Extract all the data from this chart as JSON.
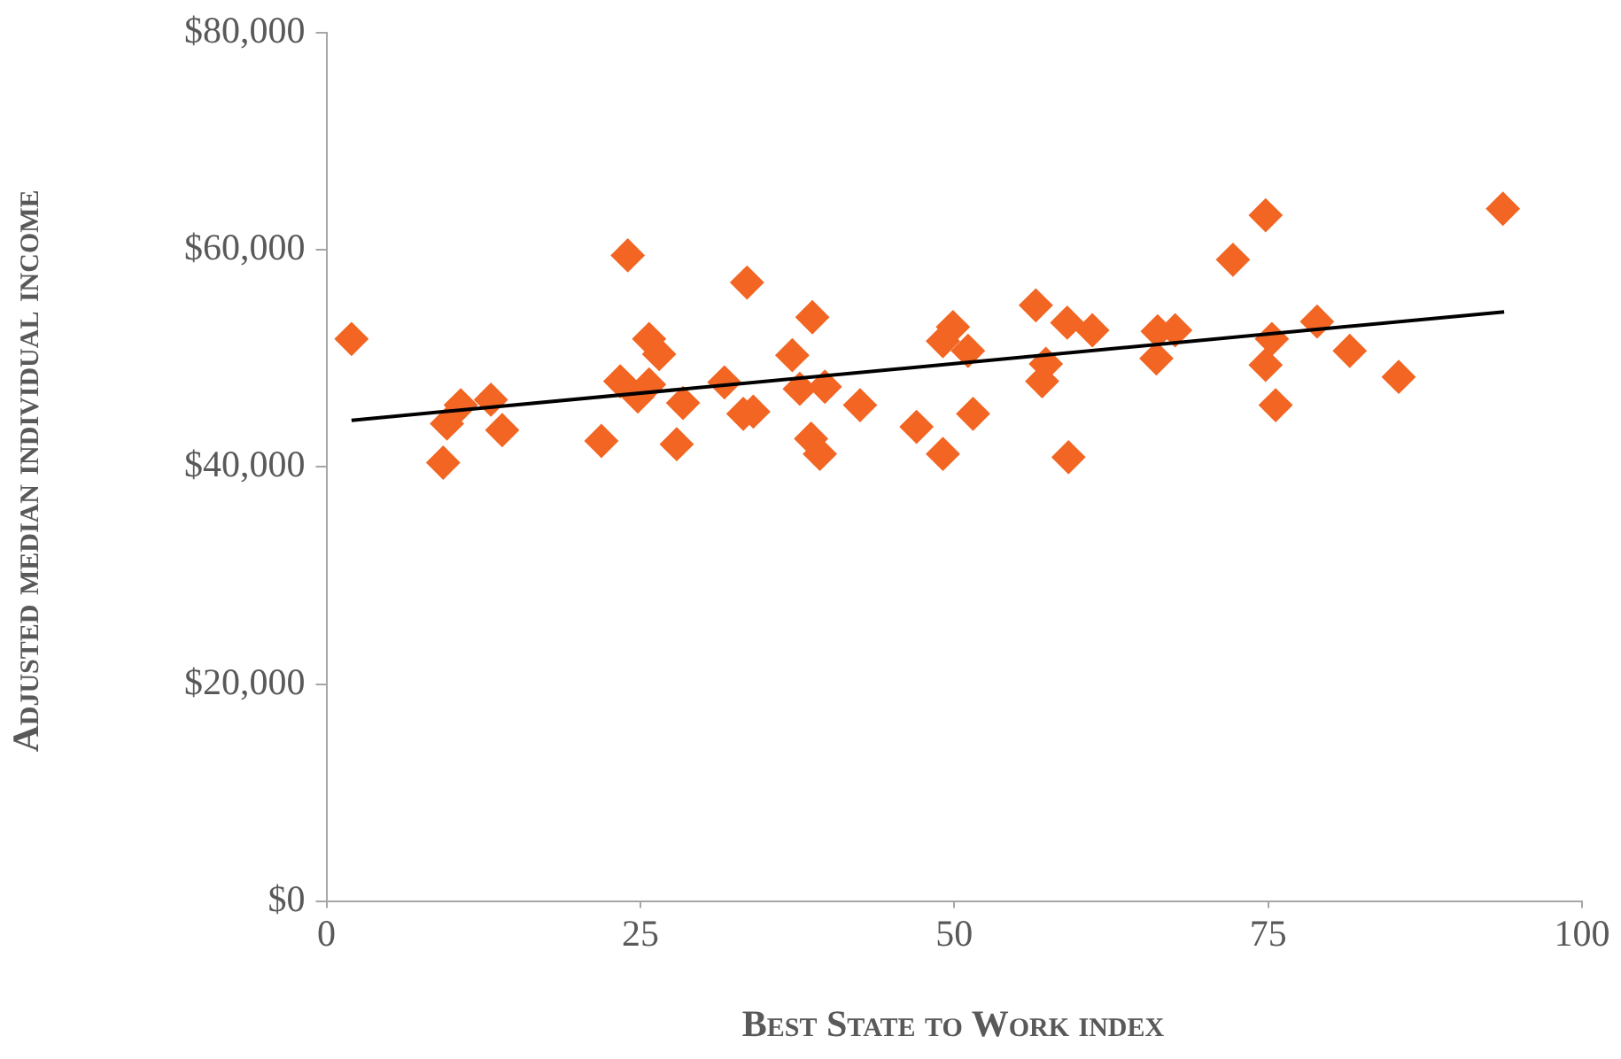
{
  "chart_data": {
    "type": "scatter",
    "xlabel": "Best State to Work index",
    "ylabel": "Adjusted median individual income",
    "xlim": [
      0,
      100
    ],
    "xticks": [
      0,
      25,
      50,
      75,
      100
    ],
    "ylim": [
      0,
      80000
    ],
    "yticks": [
      {
        "value": 0,
        "label": "$0"
      },
      {
        "value": 20000,
        "label": "$20,000"
      },
      {
        "value": 40000,
        "label": "$40,000"
      },
      {
        "value": 60000,
        "label": "$60,000"
      },
      {
        "value": 80000,
        "label": "$80,000"
      }
    ],
    "series": [
      {
        "type": "scatter",
        "marker": "diamond",
        "color": "#f26522",
        "x": [
          2.0,
          9.3,
          9.6,
          10.7,
          13.1,
          14.0,
          21.9,
          24.0,
          23.4,
          24.8,
          25.7,
          25.7,
          26.5,
          28.4,
          27.9,
          31.7,
          33.5,
          33.2,
          34.0,
          37.1,
          37.7,
          38.7,
          39.7,
          38.6,
          39.3,
          42.5,
          47.0,
          49.1,
          49.1,
          49.9,
          51.1,
          51.5,
          56.5,
          59.0,
          61.0,
          57.3,
          57.0,
          59.1,
          66.2,
          67.6,
          66.1,
          72.2,
          74.8,
          75.3,
          74.8,
          75.6,
          78.9,
          81.5,
          85.4,
          93.7
        ],
        "values": [
          51800,
          40400,
          44000,
          45700,
          46200,
          43400,
          42400,
          59500,
          47900,
          46500,
          47600,
          51800,
          50400,
          45900,
          42100,
          47800,
          57000,
          44900,
          45100,
          50300,
          47200,
          53800,
          47400,
          42600,
          41200,
          45700,
          43700,
          41200,
          51600,
          52900,
          50700,
          44900,
          54900,
          53300,
          52600,
          49500,
          47900,
          40900,
          52500,
          52600,
          50000,
          59100,
          63200,
          51800,
          49400,
          45700,
          53400,
          50700,
          48300,
          63800
        ]
      },
      {
        "type": "line",
        "color": "#000000",
        "x": [
          2.0,
          93.8
        ],
        "values": [
          44300,
          54300
        ]
      }
    ]
  }
}
